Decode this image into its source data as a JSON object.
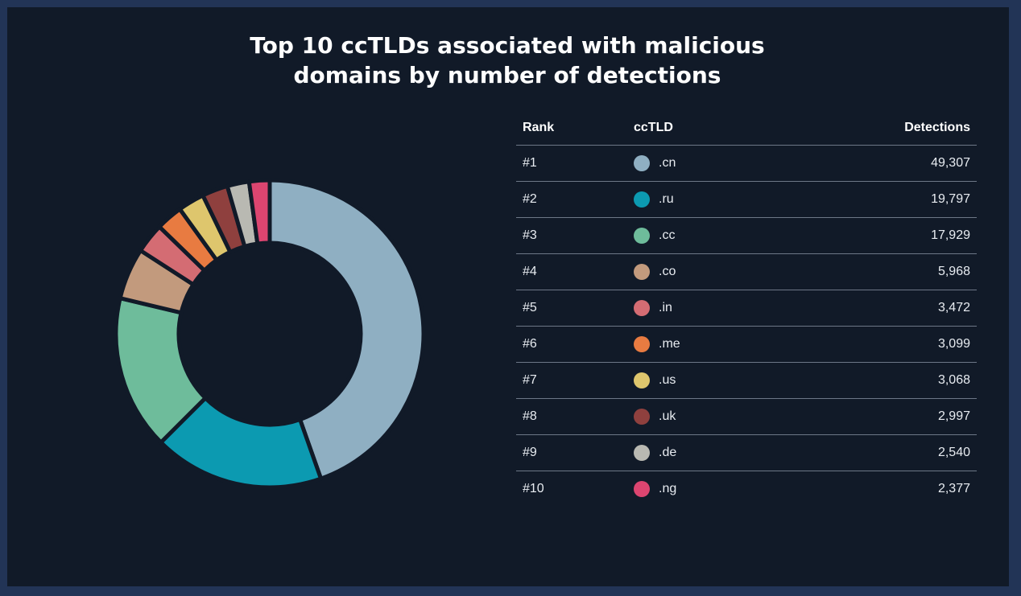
{
  "chart_data": {
    "type": "pie",
    "title": "Top 10 ccTLDs associated with malicious domains by number of detections",
    "title_lines": [
      "Top 10 ccTLDs associated with malicious",
      "domains by number of detections"
    ],
    "columns": {
      "rank": "Rank",
      "tld": "ccTLD",
      "detections": "Detections"
    },
    "rows": [
      {
        "rank": "#1",
        "tld": ".cn",
        "detections": "49,307",
        "value": 49307,
        "color": "#8fafc2"
      },
      {
        "rank": "#2",
        "tld": ".ru",
        "detections": "19,797",
        "value": 19797,
        "color": "#0c9ab1"
      },
      {
        "rank": "#3",
        "tld": ".cc",
        "detections": "17,929",
        "value": 17929,
        "color": "#6ebc9b"
      },
      {
        "rank": "#4",
        "tld": ".co",
        "detections": "5,968",
        "value": 5968,
        "color": "#c29a7d"
      },
      {
        "rank": "#5",
        "tld": ".in",
        "detections": "3,472",
        "value": 3472,
        "color": "#d46c73"
      },
      {
        "rank": "#6",
        "tld": ".me",
        "detections": "3,099",
        "value": 3099,
        "color": "#e87b41"
      },
      {
        "rank": "#7",
        "tld": ".us",
        "detections": "3,068",
        "value": 3068,
        "color": "#dec66d"
      },
      {
        "rank": "#8",
        "tld": ".uk",
        "detections": "2,997",
        "value": 2997,
        "color": "#8f403e"
      },
      {
        "rank": "#9",
        "tld": ".de",
        "detections": "2,540",
        "value": 2540,
        "color": "#b9b9b2"
      },
      {
        "rank": "#10",
        "tld": ".ng",
        "detections": "2,377",
        "value": 2377,
        "color": "#dc4570"
      }
    ],
    "background": "#111a28",
    "frame_color": "#223456",
    "legend": "table-right"
  }
}
